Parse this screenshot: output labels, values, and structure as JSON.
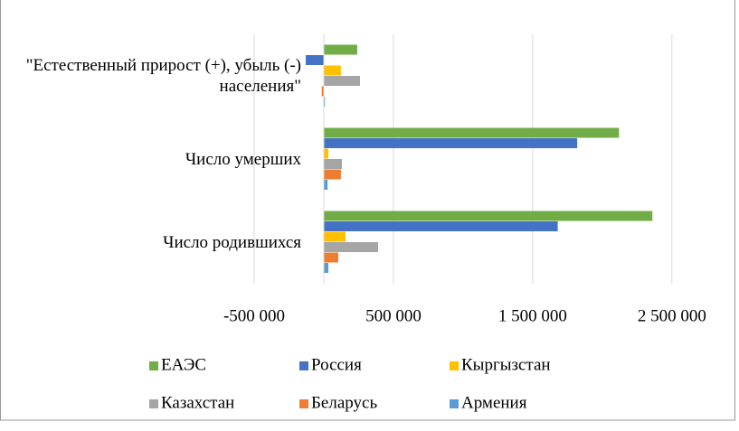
{
  "chart_data": {
    "type": "hbar",
    "categories": [
      "\"Естественный прирост (+), убыль (-) населения\"",
      "Число умерших",
      "Число родившихся"
    ],
    "series": [
      {
        "name": "ЕАЭС",
        "color": "#70ad47",
        "values": [
          240000,
          2120000,
          2360000
        ]
      },
      {
        "name": "Россия",
        "color": "#4472c4",
        "values": [
          -130000,
          1820000,
          1680000
        ]
      },
      {
        "name": "Кыргызстан",
        "color": "#ffc000",
        "values": [
          123000,
          33000,
          156000
        ]
      },
      {
        "name": "Казахстан",
        "color": "#a5a5a5",
        "values": [
          260000,
          130000,
          390000
        ]
      },
      {
        "name": "Беларусь",
        "color": "#ed7d31",
        "values": [
          -15000,
          123000,
          104000
        ]
      },
      {
        "name": "Армения",
        "color": "#5b9bd5",
        "values": [
          8000,
          27000,
          33000
        ]
      }
    ],
    "xlim": [
      -500000,
      2800000
    ],
    "xticks": [
      {
        "value": -500000,
        "label": "-500 000"
      },
      {
        "value": 500000,
        "label": "500 000"
      },
      {
        "value": 1500000,
        "label": "1 500 000"
      },
      {
        "value": 2500000,
        "label": "2 500 000"
      }
    ],
    "grid": true,
    "legend": "bottom"
  }
}
